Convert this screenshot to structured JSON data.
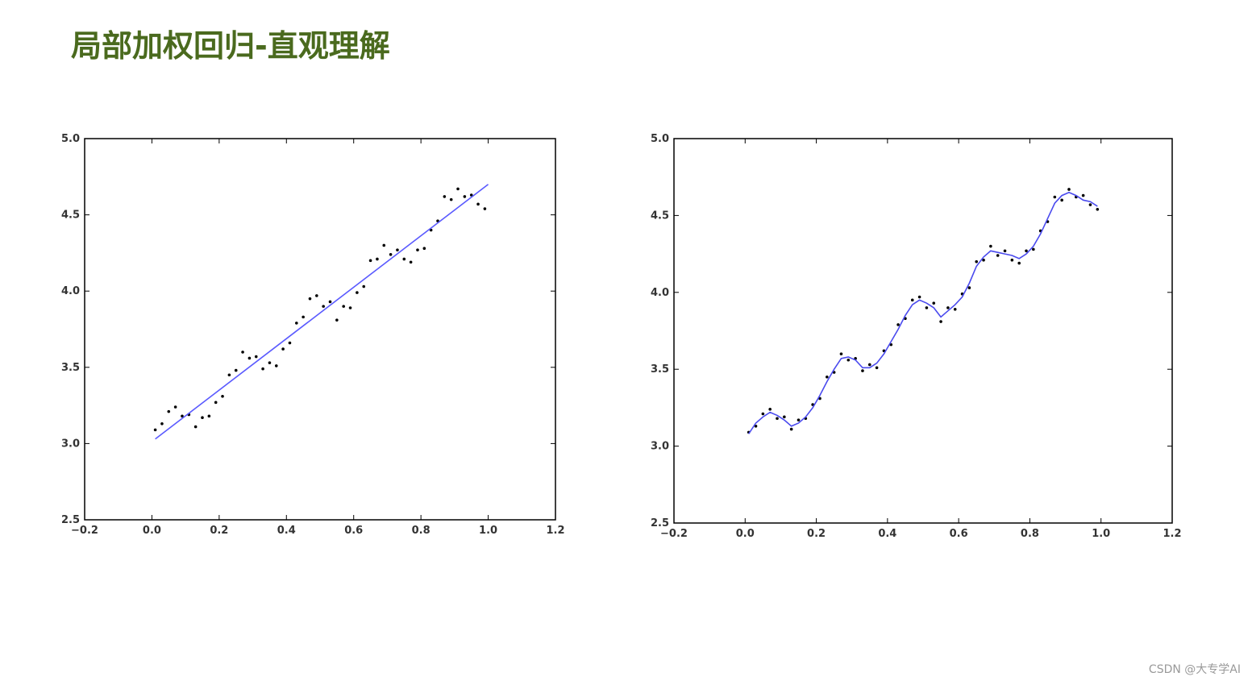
{
  "title": "局部加权回归-直观理解",
  "watermark": "CSDN @大专学AI",
  "chart_data": [
    {
      "type": "scatter",
      "xlim": [
        -0.2,
        1.2
      ],
      "xticks": [
        {
          "value": -0.2,
          "label": "−0.2"
        },
        {
          "value": 0,
          "label": "0.0"
        },
        0.2,
        0.4,
        0.6,
        0.8,
        {
          "value": 1,
          "label": "1.0"
        },
        1.2
      ],
      "ylim": [
        2.5,
        5
      ],
      "yticks": [
        2.5,
        {
          "value": 3,
          "label": "3.0"
        },
        3.5,
        {
          "value": 4,
          "label": "4.0"
        },
        4.5,
        {
          "value": 5,
          "label": "5.0"
        }
      ],
      "series": [
        {
          "mode": "markers",
          "color": "#000000",
          "x": [
            0.01,
            0.03,
            0.05,
            0.07,
            0.09,
            0.11,
            0.13,
            0.15,
            0.17,
            0.19,
            0.21,
            0.23,
            0.25,
            0.27,
            0.29,
            0.31,
            0.33,
            0.35,
            0.37,
            0.39,
            0.41,
            0.43,
            0.45,
            0.47,
            0.49,
            0.51,
            0.53,
            0.55,
            0.57,
            0.59,
            0.61,
            0.63,
            0.65,
            0.67,
            0.69,
            0.71,
            0.73,
            0.75,
            0.77,
            0.79,
            0.81,
            0.83,
            0.85,
            0.87,
            0.89,
            0.91,
            0.93,
            0.95,
            0.97,
            0.99
          ],
          "values": [
            3.09,
            3.13,
            3.21,
            3.24,
            3.18,
            3.19,
            3.11,
            3.17,
            3.18,
            3.27,
            3.31,
            3.45,
            3.48,
            3.6,
            3.56,
            3.57,
            3.49,
            3.53,
            3.51,
            3.62,
            3.66,
            3.79,
            3.83,
            3.95,
            3.97,
            3.9,
            3.93,
            3.81,
            3.9,
            3.89,
            3.99,
            4.03,
            4.2,
            4.21,
            4.3,
            4.24,
            4.27,
            4.21,
            4.19,
            4.27,
            4.28,
            4.4,
            4.46,
            4.62,
            4.6,
            4.67,
            4.62,
            4.63,
            4.57,
            4.54
          ]
        },
        {
          "mode": "line",
          "color": "#5a5aff",
          "x": [
            0.01,
            1.0
          ],
          "values": [
            3.03,
            4.7
          ]
        }
      ]
    },
    {
      "type": "scatter",
      "xlim": [
        -0.2,
        1.2
      ],
      "xticks": [
        {
          "value": -0.2,
          "label": "−0.2"
        },
        {
          "value": 0,
          "label": "0.0"
        },
        0.2,
        0.4,
        0.6,
        0.8,
        {
          "value": 1,
          "label": "1.0"
        },
        1.2
      ],
      "ylim": [
        2.5,
        5
      ],
      "yticks": [
        2.5,
        {
          "value": 3,
          "label": "3.0"
        },
        3.5,
        {
          "value": 4,
          "label": "4.0"
        },
        4.5,
        {
          "value": 5,
          "label": "5.0"
        }
      ],
      "series": [
        {
          "mode": "markers",
          "color": "#000000",
          "x": [
            0.01,
            0.03,
            0.05,
            0.07,
            0.09,
            0.11,
            0.13,
            0.15,
            0.17,
            0.19,
            0.21,
            0.23,
            0.25,
            0.27,
            0.29,
            0.31,
            0.33,
            0.35,
            0.37,
            0.39,
            0.41,
            0.43,
            0.45,
            0.47,
            0.49,
            0.51,
            0.53,
            0.55,
            0.57,
            0.59,
            0.61,
            0.63,
            0.65,
            0.67,
            0.69,
            0.71,
            0.73,
            0.75,
            0.77,
            0.79,
            0.81,
            0.83,
            0.85,
            0.87,
            0.89,
            0.91,
            0.93,
            0.95,
            0.97,
            0.99
          ],
          "values": [
            3.09,
            3.13,
            3.21,
            3.24,
            3.18,
            3.19,
            3.11,
            3.17,
            3.18,
            3.27,
            3.31,
            3.45,
            3.48,
            3.6,
            3.56,
            3.57,
            3.49,
            3.53,
            3.51,
            3.62,
            3.66,
            3.79,
            3.83,
            3.95,
            3.97,
            3.9,
            3.93,
            3.81,
            3.9,
            3.89,
            3.99,
            4.03,
            4.2,
            4.21,
            4.3,
            4.24,
            4.27,
            4.21,
            4.19,
            4.27,
            4.28,
            4.4,
            4.46,
            4.62,
            4.6,
            4.67,
            4.62,
            4.63,
            4.57,
            4.54
          ]
        },
        {
          "mode": "line",
          "color": "#4a4aee",
          "x": [
            0.01,
            0.03,
            0.05,
            0.07,
            0.09,
            0.11,
            0.13,
            0.15,
            0.17,
            0.19,
            0.21,
            0.23,
            0.25,
            0.27,
            0.29,
            0.31,
            0.33,
            0.35,
            0.37,
            0.39,
            0.41,
            0.43,
            0.45,
            0.47,
            0.49,
            0.51,
            0.53,
            0.55,
            0.57,
            0.59,
            0.61,
            0.63,
            0.65,
            0.67,
            0.69,
            0.71,
            0.73,
            0.75,
            0.77,
            0.79,
            0.81,
            0.83,
            0.85,
            0.87,
            0.89,
            0.91,
            0.93,
            0.95,
            0.97,
            0.99
          ],
          "values": [
            3.08,
            3.15,
            3.19,
            3.22,
            3.2,
            3.17,
            3.13,
            3.15,
            3.19,
            3.25,
            3.33,
            3.42,
            3.5,
            3.57,
            3.58,
            3.56,
            3.51,
            3.51,
            3.54,
            3.6,
            3.68,
            3.76,
            3.85,
            3.92,
            3.95,
            3.93,
            3.9,
            3.84,
            3.88,
            3.92,
            3.97,
            4.06,
            4.17,
            4.23,
            4.27,
            4.26,
            4.25,
            4.24,
            4.22,
            4.25,
            4.3,
            4.38,
            4.48,
            4.58,
            4.63,
            4.65,
            4.63,
            4.6,
            4.59,
            4.56
          ]
        }
      ]
    }
  ]
}
